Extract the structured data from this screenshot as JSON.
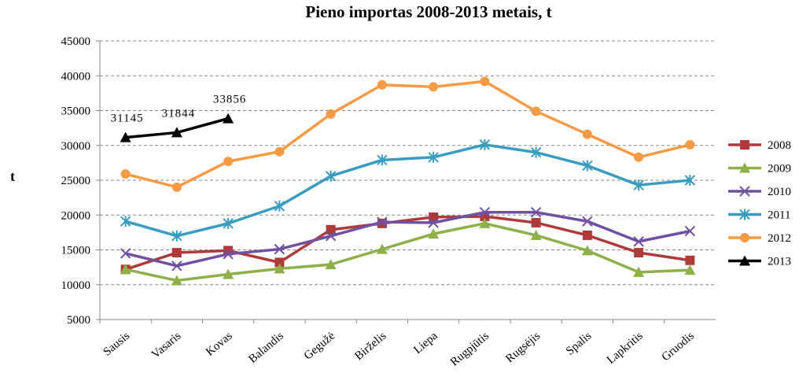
{
  "chart_data": {
    "type": "line",
    "title": "Pieno importas 2008-2013 metais, t",
    "y_label": "t",
    "categories": [
      "Sausis",
      "Vasaris",
      "Kovas",
      "Balandis",
      "Gegužė",
      "Birželis",
      "Liepa",
      "Rugpjūtis",
      "Rugsėjis",
      "Spalis",
      "Lapkritis",
      "Gruodis"
    ],
    "ylim": [
      5000,
      45000
    ],
    "yticks": [
      5000,
      10000,
      15000,
      20000,
      25000,
      30000,
      35000,
      40000,
      45000
    ],
    "grid": true,
    "legend": "right",
    "series": [
      {
        "name": "2008",
        "color": "#b03a3a",
        "marker": "square",
        "values": [
          12200,
          14600,
          14900,
          13200,
          17900,
          18800,
          19700,
          19800,
          18900,
          17100,
          14600,
          13500
        ]
      },
      {
        "name": "2009",
        "color": "#8db04a",
        "marker": "triangle",
        "values": [
          12200,
          10600,
          11500,
          12300,
          12900,
          15100,
          17300,
          18800,
          17100,
          14900,
          11800,
          12100
        ]
      },
      {
        "name": "2010",
        "color": "#7050a0",
        "marker": "x",
        "values": [
          14500,
          12700,
          14400,
          15100,
          17000,
          19000,
          18900,
          20400,
          20400,
          19100,
          16200,
          17700
        ]
      },
      {
        "name": "2011",
        "color": "#3a9cc0",
        "marker": "star",
        "values": [
          19100,
          17000,
          18800,
          21300,
          25600,
          27900,
          28300,
          30100,
          29000,
          27100,
          24300,
          25000
        ]
      },
      {
        "name": "2012",
        "color": "#f59a45",
        "marker": "circle",
        "values": [
          25900,
          24000,
          27700,
          29100,
          34500,
          38700,
          38400,
          39200,
          34900,
          31600,
          28300,
          30100
        ]
      },
      {
        "name": "2013",
        "color": "#000000",
        "marker": "triangle",
        "show_values": true,
        "values": [
          31145,
          31844,
          33856,
          null,
          null,
          null,
          null,
          null,
          null,
          null,
          null,
          null
        ]
      }
    ]
  }
}
